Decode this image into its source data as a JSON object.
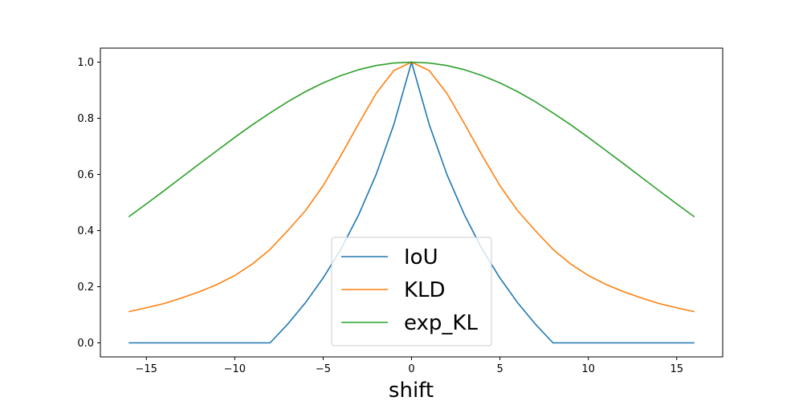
{
  "chart_data": {
    "type": "line",
    "xlabel": "shift",
    "ylabel": "",
    "title": "",
    "xlim": [
      -17.6,
      17.6
    ],
    "ylim": [
      -0.05,
      1.05
    ],
    "xticks": [
      -15,
      -10,
      -5,
      0,
      5,
      10,
      15
    ],
    "xtick_labels": [
      "−15",
      "−10",
      "−5",
      "0",
      "5",
      "10",
      "15"
    ],
    "yticks": [
      0.0,
      0.2,
      0.4,
      0.6,
      0.8,
      1.0
    ],
    "ytick_labels": [
      "0.0",
      "0.2",
      "0.4",
      "0.6",
      "0.8",
      "1.0"
    ],
    "grid": false,
    "legend_position": "lower-center",
    "x": [
      -16,
      -15,
      -14,
      -13,
      -12,
      -11,
      -10,
      -9,
      -8,
      -7,
      -6,
      -5,
      -4,
      -3,
      -2,
      -1,
      0,
      1,
      2,
      3,
      4,
      5,
      6,
      7,
      8,
      9,
      10,
      11,
      12,
      13,
      14,
      15,
      16
    ],
    "series": [
      {
        "name": "IoU",
        "color": "#1f77b4",
        "values": [
          0,
          0,
          0,
          0,
          0,
          0,
          0,
          0,
          0,
          0.067,
          0.143,
          0.231,
          0.333,
          0.455,
          0.6,
          0.778,
          1.0,
          0.778,
          0.6,
          0.455,
          0.333,
          0.231,
          0.143,
          0.067,
          0,
          0,
          0,
          0,
          0,
          0,
          0,
          0,
          0
        ]
      },
      {
        "name": "KLD",
        "color": "#ff7f0e",
        "values": [
          0.111,
          0.125,
          0.14,
          0.16,
          0.182,
          0.208,
          0.24,
          0.281,
          0.333,
          0.4,
          0.471,
          0.56,
          0.667,
          0.78,
          0.889,
          0.97,
          1.0,
          0.97,
          0.889,
          0.78,
          0.667,
          0.56,
          0.471,
          0.4,
          0.333,
          0.281,
          0.24,
          0.208,
          0.182,
          0.16,
          0.14,
          0.125,
          0.111
        ]
      },
      {
        "name": "exp_KL",
        "color": "#2ca02c",
        "values": [
          0.449,
          0.495,
          0.542,
          0.59,
          0.638,
          0.685,
          0.732,
          0.777,
          0.819,
          0.859,
          0.895,
          0.926,
          0.952,
          0.973,
          0.988,
          0.997,
          1.0,
          0.997,
          0.988,
          0.973,
          0.952,
          0.926,
          0.895,
          0.859,
          0.819,
          0.777,
          0.732,
          0.685,
          0.638,
          0.59,
          0.542,
          0.495,
          0.449
        ]
      }
    ]
  }
}
